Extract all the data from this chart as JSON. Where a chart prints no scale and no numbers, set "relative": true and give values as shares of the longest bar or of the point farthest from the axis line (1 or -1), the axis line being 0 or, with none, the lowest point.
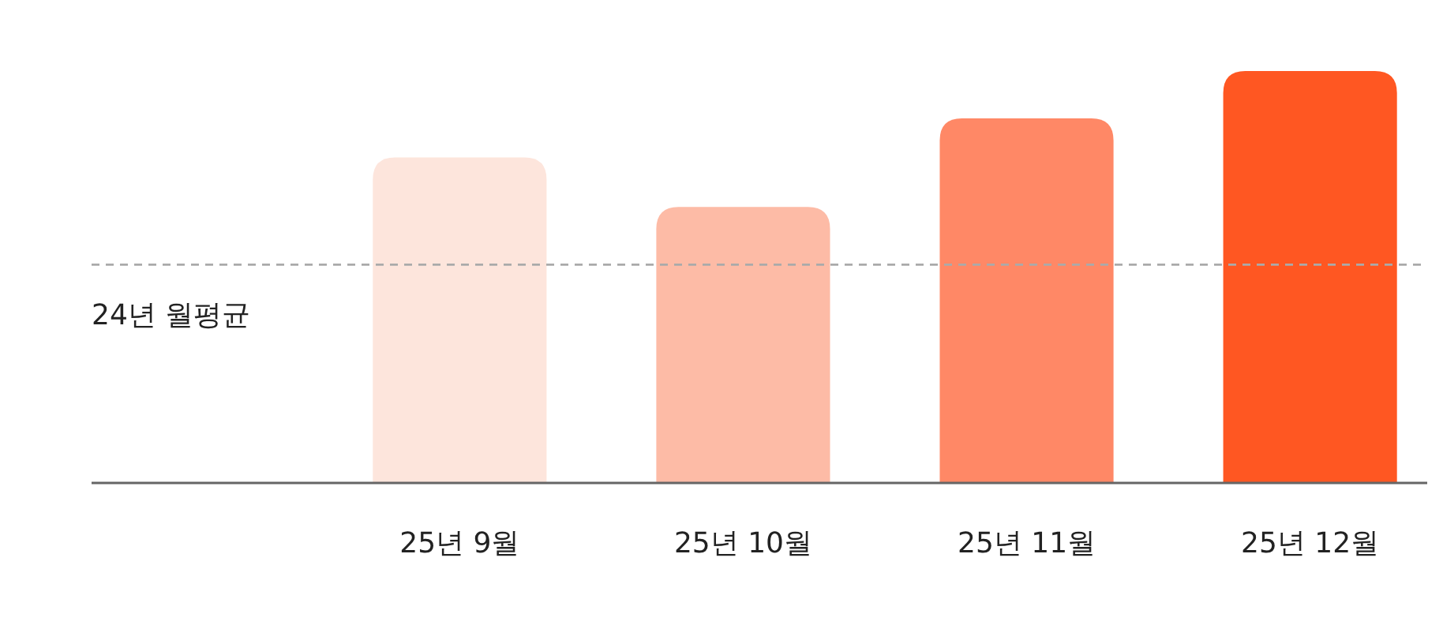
{
  "chart_data": {
    "type": "bar",
    "relative": true,
    "categories": [
      "25년 9월",
      "25년 10월",
      "25년 11월",
      "25년 12월"
    ],
    "values": [
      0.79,
      0.67,
      0.885,
      1
    ],
    "colors": [
      "#fde5dc",
      "#fdbba6",
      "#ff8866",
      "#ff5722"
    ],
    "ref_lines": [
      {
        "axis": "y",
        "value": 0.53,
        "label": "24년 월평균",
        "color": "#aaaaaa",
        "line_style": "dashed"
      }
    ]
  }
}
